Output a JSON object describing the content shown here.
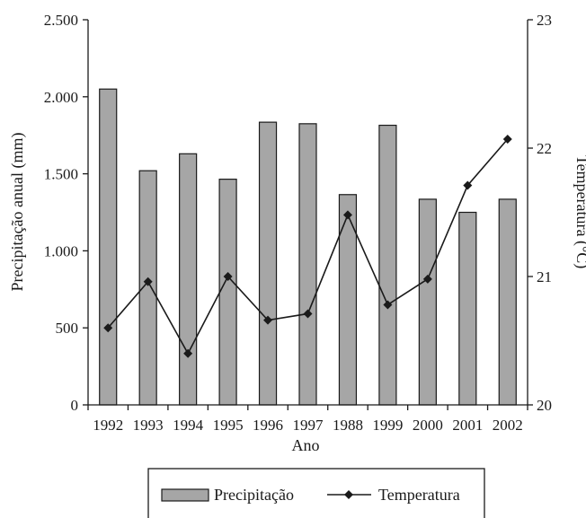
{
  "chart_data": {
    "type": "bar+line",
    "categories": [
      "1992",
      "1993",
      "1994",
      "1995",
      "1996",
      "1997",
      "1988",
      "1999",
      "2000",
      "2001",
      "2002"
    ],
    "series": [
      {
        "name": "Precipitação",
        "type": "bar",
        "axis": "left",
        "values": [
          2050,
          1520,
          1630,
          1465,
          1835,
          1825,
          1365,
          1815,
          1335,
          1250,
          1335
        ]
      },
      {
        "name": "Temperatura",
        "type": "line",
        "axis": "right",
        "values": [
          20.6,
          20.96,
          20.4,
          21.0,
          20.66,
          20.71,
          21.48,
          20.78,
          20.98,
          21.71,
          22.07
        ]
      }
    ],
    "xlabel": "Ano",
    "ylabel_left": "Precipitação anual (mm)",
    "ylabel_right": "Temperatura (°C)",
    "ylim_left": [
      0,
      2500
    ],
    "ylim_right": [
      20,
      23
    ],
    "yticks_left": [
      0,
      500,
      1000,
      1500,
      2000,
      2500
    ],
    "yticks_left_labels": [
      "0",
      "500",
      "1.000",
      "1.500",
      "2.000",
      "2.500"
    ],
    "yticks_right": [
      20,
      21,
      22,
      23
    ],
    "yticks_right_labels": [
      "20",
      "21",
      "22",
      "23"
    ],
    "grid": false,
    "legend": "bottom",
    "colors": {
      "bar_fill": "#a6a6a6",
      "bar_stroke": "#1a1a1a",
      "line": "#1a1a1a",
      "axis": "#1a1a1a"
    }
  }
}
